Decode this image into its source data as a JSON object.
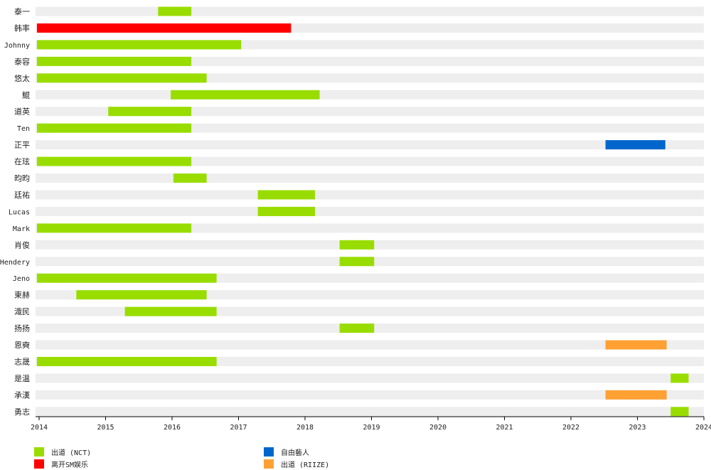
{
  "chart_data": {
    "type": "bar",
    "subtype": "timeline",
    "x_axis": {
      "ticks": [
        "2014",
        "2015",
        "2016",
        "2017",
        "2018",
        "2019",
        "2020",
        "2021",
        "2022",
        "2023",
        "2024"
      ],
      "range": [
        2014.0,
        2024.0
      ]
    },
    "colors": {
      "nct": "#99dd00",
      "left": "#ff0000",
      "free": "#0066cc",
      "riize": "#ffa033",
      "track": "#eeeeee",
      "axis": "#000000"
    },
    "rows": [
      {
        "name": "泰一",
        "bars": [
          {
            "start": 2015.79,
            "end": 2016.29,
            "status": "nct"
          }
        ]
      },
      {
        "name": "韩率",
        "bars": [
          {
            "start": 2014.0,
            "end": 2017.79,
            "status": "left"
          }
        ]
      },
      {
        "name": "Johnny",
        "bars": [
          {
            "start": 2014.0,
            "end": 2017.04,
            "status": "nct"
          }
        ]
      },
      {
        "name": "泰容",
        "bars": [
          {
            "start": 2014.0,
            "end": 2016.29,
            "status": "nct"
          }
        ]
      },
      {
        "name": "悠太",
        "bars": [
          {
            "start": 2014.0,
            "end": 2016.52,
            "status": "nct"
          }
        ]
      },
      {
        "name": "鯤",
        "bars": [
          {
            "start": 2015.98,
            "end": 2018.22,
            "status": "nct"
          }
        ]
      },
      {
        "name": "道英",
        "bars": [
          {
            "start": 2015.04,
            "end": 2016.29,
            "status": "nct"
          }
        ]
      },
      {
        "name": "Ten",
        "bars": [
          {
            "start": 2014.0,
            "end": 2016.29,
            "status": "nct"
          }
        ]
      },
      {
        "name": "正平",
        "bars": [
          {
            "start": 2022.52,
            "end": 2023.42,
            "status": "free"
          }
        ]
      },
      {
        "name": "在玹",
        "bars": [
          {
            "start": 2014.0,
            "end": 2016.29,
            "status": "nct"
          }
        ]
      },
      {
        "name": "昀昀",
        "bars": [
          {
            "start": 2016.02,
            "end": 2016.52,
            "status": "nct"
          }
        ]
      },
      {
        "name": "廷祐",
        "bars": [
          {
            "start": 2017.29,
            "end": 2018.15,
            "status": "nct"
          }
        ]
      },
      {
        "name": "Lucas",
        "bars": [
          {
            "start": 2017.29,
            "end": 2018.15,
            "status": "nct"
          }
        ]
      },
      {
        "name": "Mark",
        "bars": [
          {
            "start": 2014.0,
            "end": 2016.29,
            "status": "nct"
          }
        ]
      },
      {
        "name": "肖俊",
        "bars": [
          {
            "start": 2018.52,
            "end": 2019.04,
            "status": "nct"
          }
        ]
      },
      {
        "name": "Hendery",
        "bars": [
          {
            "start": 2018.52,
            "end": 2019.04,
            "status": "nct"
          }
        ]
      },
      {
        "name": "Jeno",
        "bars": [
          {
            "start": 2014.0,
            "end": 2016.67,
            "status": "nct"
          }
        ]
      },
      {
        "name": "東赫",
        "bars": [
          {
            "start": 2014.56,
            "end": 2016.52,
            "status": "nct"
          }
        ]
      },
      {
        "name": "渽民",
        "bars": [
          {
            "start": 2015.29,
            "end": 2016.67,
            "status": "nct"
          }
        ]
      },
      {
        "name": "扬扬",
        "bars": [
          {
            "start": 2018.52,
            "end": 2019.04,
            "status": "nct"
          }
        ]
      },
      {
        "name": "恩奭",
        "bars": [
          {
            "start": 2022.52,
            "end": 2023.44,
            "status": "riize"
          }
        ]
      },
      {
        "name": "志晟",
        "bars": [
          {
            "start": 2014.0,
            "end": 2016.67,
            "status": "nct"
          }
        ]
      },
      {
        "name": "是温",
        "bars": [
          {
            "start": 2023.5,
            "end": 2023.77,
            "status": "nct"
          }
        ]
      },
      {
        "name": "承漢",
        "bars": [
          {
            "start": 2022.52,
            "end": 2023.44,
            "status": "riize"
          }
        ]
      },
      {
        "name": "勇志",
        "bars": [
          {
            "start": 2023.5,
            "end": 2023.77,
            "status": "nct"
          }
        ]
      }
    ],
    "legend": [
      {
        "status": "nct",
        "label": "出道 (NCT)"
      },
      {
        "status": "left",
        "label": "离开SM娱乐"
      },
      {
        "status": "free",
        "label": "自由藝人"
      },
      {
        "status": "riize",
        "label": "出道 (RIIZE)"
      }
    ],
    "legend_position": "bottom"
  }
}
